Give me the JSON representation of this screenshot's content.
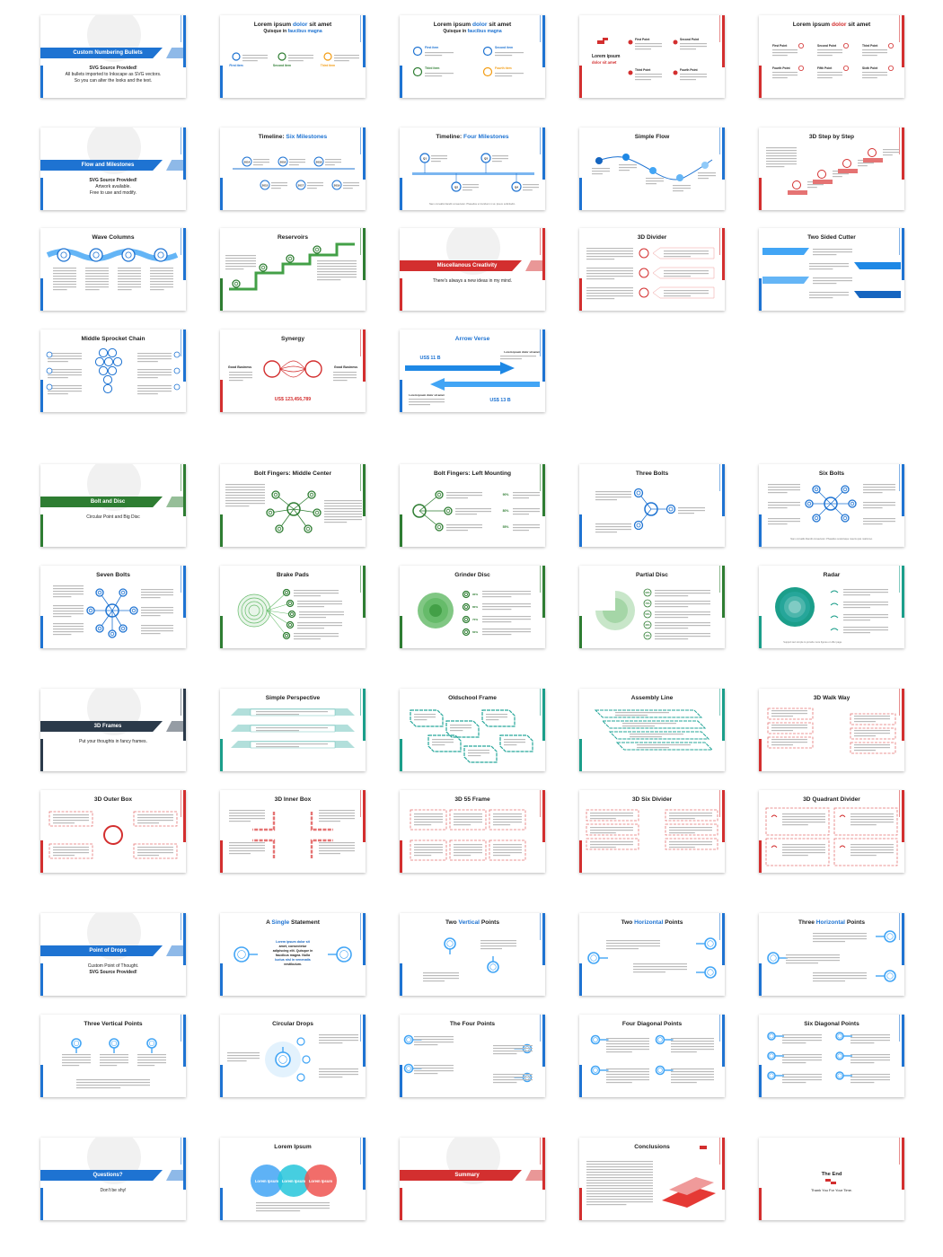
{
  "palette": {
    "blue": "#1e73d2",
    "blue2": "#2196f3",
    "red": "#d32f2f",
    "green": "#2e7d32",
    "teal": "#1b9e8a",
    "dark": "#2b3a4a"
  },
  "slides": [
    {
      "kind": "section",
      "accent": "blue",
      "label": "Custom Numbering Bullets",
      "lines": [
        "SVG Source Provided!",
        "All bullets imported to Inkscape as SVG vectors.",
        "So you can alter the looks and the text."
      ]
    },
    {
      "kind": "content",
      "accent": "blue",
      "title": [
        {
          "t": "Lorem ipsum "
        },
        {
          "t": "dolor",
          "c": "blue"
        },
        {
          "t": " sit amet"
        }
      ],
      "subtitle": [
        {
          "t": "Quisque in "
        },
        {
          "t": "faucibus magna",
          "c": "blue"
        }
      ],
      "viz": "bullets3",
      "labels": [
        "First item",
        "Second item",
        "Third item"
      ]
    },
    {
      "kind": "content",
      "accent": "blue",
      "title": [
        {
          "t": "Lorem ipsum "
        },
        {
          "t": "dolor",
          "c": "blue"
        },
        {
          "t": " sit amet"
        }
      ],
      "subtitle": [
        {
          "t": "Quisque in "
        },
        {
          "t": "faucibus magna",
          "c": "blue"
        }
      ],
      "viz": "bullets4",
      "labels": [
        "First item",
        "Second item",
        "Third item",
        "Fourth item"
      ]
    },
    {
      "kind": "content",
      "accent": "red",
      "title": [],
      "viz": "redleft",
      "left": [
        "Lorem ipsum",
        "dolor sit amet"
      ],
      "labels": [
        "First Point",
        "Second Point",
        "Third Point",
        "Fourth Point"
      ]
    },
    {
      "kind": "content",
      "accent": "red",
      "title": [
        {
          "t": "Lorem ipsum "
        },
        {
          "t": "dolor",
          "c": "red"
        },
        {
          "t": " sit amet"
        }
      ],
      "viz": "grid6",
      "labels": [
        "First Point",
        "Second Point",
        "Third Point",
        "Fourth Point",
        "Fifth Point",
        "Sixth Point"
      ]
    },
    {
      "kind": "section",
      "accent": "blue",
      "label": "Flow and Milestones",
      "lines": [
        "SVG Source Provided!",
        "Artwork available.",
        "Free to use and modify."
      ]
    },
    {
      "kind": "content",
      "accent": "blue",
      "title": [
        {
          "t": "Timeline: "
        },
        {
          "t": "Six Milestones",
          "c": "blue"
        }
      ],
      "viz": "timeline6",
      "labels": [
        "2014",
        "2015",
        "2016",
        "2017",
        "2018",
        "2019"
      ]
    },
    {
      "kind": "content",
      "accent": "blue",
      "title": [
        {
          "t": "Timeline: "
        },
        {
          "t": "Four Milestones",
          "c": "blue"
        }
      ],
      "viz": "timeline4",
      "labels": [
        "Q1",
        "Q2",
        "Q3",
        "Q4"
      ],
      "caption": "Nam convallis blandit consectetur. Phasellus ut tincidunt mi at. Ipsum sollicitudin."
    },
    {
      "kind": "content",
      "accent": "blue",
      "title": [
        {
          "t": "Simple Flow"
        }
      ],
      "viz": "flow"
    },
    {
      "kind": "content",
      "accent": "red",
      "title": [
        {
          "t": "3D Step by Step"
        }
      ],
      "viz": "steps"
    },
    {
      "kind": "content",
      "accent": "blue",
      "title": [
        {
          "t": "Wave Columns"
        }
      ],
      "viz": "wave"
    },
    {
      "kind": "content",
      "accent": "green",
      "title": [
        {
          "t": "Reservoirs"
        }
      ],
      "viz": "reservoirs"
    },
    {
      "kind": "section",
      "accent": "red",
      "label": "Miscellanous Creativity",
      "lines": [
        "There's always a new ideas in my mind."
      ]
    },
    {
      "kind": "content",
      "accent": "red",
      "title": [
        {
          "t": "3D Divider"
        }
      ],
      "viz": "divider"
    },
    {
      "kind": "content",
      "accent": "blue",
      "title": [
        {
          "t": "Two Sided Cutter"
        }
      ],
      "viz": "cutter"
    },
    {
      "kind": "content",
      "accent": "blue",
      "title": [
        {
          "t": "Middle Sprocket Chain"
        }
      ],
      "viz": "sprocket"
    },
    {
      "kind": "content",
      "accent": "red",
      "title": [
        {
          "t": "Synergy"
        }
      ],
      "viz": "synergy",
      "labels": [
        "Good Business",
        "Good Business",
        "US$ 123,456,789"
      ]
    },
    {
      "kind": "content",
      "accent": "blue",
      "title": [
        {
          "t": "Arrow Verse",
          "c": "blue"
        }
      ],
      "viz": "arrows",
      "labels": [
        "US$ 11 B",
        "US$ 13 B",
        "Lorem ipsum dolor sit amet",
        "Lorem ipsum dolor sit amet"
      ]
    },
    {
      "kind": "section",
      "accent": "green",
      "label": "Bolt and Disc",
      "lines": [
        "Circular Point and Big Disc"
      ]
    },
    {
      "kind": "content",
      "accent": "green",
      "title": [
        {
          "t": "Bolt Fingers: Middle Center"
        }
      ],
      "viz": "boltmid"
    },
    {
      "kind": "content",
      "accent": "green",
      "title": [
        {
          "t": "Bolt Fingers: Left Mounting"
        }
      ],
      "viz": "boltleft",
      "labels": [
        "90%",
        "80%",
        "55%"
      ]
    },
    {
      "kind": "content",
      "accent": "blue",
      "title": [
        {
          "t": "Three Bolts"
        }
      ],
      "viz": "bolts3"
    },
    {
      "kind": "content",
      "accent": "blue",
      "title": [
        {
          "t": "Six Bolts"
        }
      ],
      "viz": "bolts6",
      "caption": "Nam convallis blandit consectetur. Phasellus scelerisque mauris quis mattis leo."
    },
    {
      "kind": "content",
      "accent": "blue",
      "title": [
        {
          "t": "Seven Bolts"
        }
      ],
      "viz": "bolts7"
    },
    {
      "kind": "content",
      "accent": "green",
      "title": [
        {
          "t": "Brake Pads"
        }
      ],
      "viz": "brake"
    },
    {
      "kind": "content",
      "accent": "green",
      "title": [
        {
          "t": "Grinder Disc"
        }
      ],
      "viz": "grinder",
      "labels": [
        "90%",
        "80%",
        "70%",
        "60%"
      ]
    },
    {
      "kind": "content",
      "accent": "green",
      "title": [
        {
          "t": "Partial Disc"
        }
      ],
      "viz": "partial",
      "labels": [
        "90%",
        "70%",
        "50%",
        "30%",
        "10%"
      ]
    },
    {
      "kind": "content",
      "accent": "teal",
      "title": [
        {
          "t": "Radar"
        }
      ],
      "viz": "radar",
      "caption": "Support text simple to provide more figures or offer page."
    },
    {
      "kind": "section",
      "accent": "dark",
      "label": "3D Frames",
      "lines": [
        "Put your thoughts in fancy frames."
      ]
    },
    {
      "kind": "content",
      "accent": "teal",
      "title": [
        {
          "t": "Simple Perspective"
        }
      ],
      "viz": "perspective"
    },
    {
      "kind": "content",
      "accent": "teal",
      "title": [
        {
          "t": "Oldschool Frame"
        }
      ],
      "viz": "oldschool"
    },
    {
      "kind": "content",
      "accent": "teal",
      "title": [
        {
          "t": "Assembly Line"
        }
      ],
      "viz": "assembly"
    },
    {
      "kind": "content",
      "accent": "red",
      "title": [
        {
          "t": "3D Walk Way"
        }
      ],
      "viz": "walkway"
    },
    {
      "kind": "content",
      "accent": "red",
      "title": [
        {
          "t": "3D Outer Box"
        }
      ],
      "viz": "outerbox"
    },
    {
      "kind": "content",
      "accent": "red",
      "title": [
        {
          "t": "3D Inner Box"
        }
      ],
      "viz": "innerbox"
    },
    {
      "kind": "content",
      "accent": "red",
      "title": [
        {
          "t": "3D 55 Frame"
        }
      ],
      "viz": "frame55"
    },
    {
      "kind": "content",
      "accent": "red",
      "title": [
        {
          "t": "3D Six Divider"
        }
      ],
      "viz": "sixdiv"
    },
    {
      "kind": "content",
      "accent": "red",
      "title": [
        {
          "t": "3D Quadrant Divider"
        }
      ],
      "viz": "quadrant"
    },
    {
      "kind": "section",
      "accent": "blue",
      "label": "Point of Drops",
      "lines": [
        "Custom Point of Thought.",
        "SVG Source Provided!"
      ]
    },
    {
      "kind": "content",
      "accent": "blue",
      "title": [
        {
          "t": "A "
        },
        {
          "t": "Single",
          "c": "blue"
        },
        {
          "t": " Statement"
        }
      ],
      "viz": "single",
      "text": [
        "Lorem ipsum dolor sit",
        "amet, consectetur",
        "adipiscing elit. Quisque in",
        "faucibus magna. Nulla",
        "luctus nisl in venenatis",
        "vestibulum."
      ]
    },
    {
      "kind": "content",
      "accent": "blue",
      "title": [
        {
          "t": "Two "
        },
        {
          "t": "Vertical",
          "c": "blue"
        },
        {
          "t": " Points"
        }
      ],
      "viz": "twovert"
    },
    {
      "kind": "content",
      "accent": "blue",
      "title": [
        {
          "t": "Two "
        },
        {
          "t": "Horizontal",
          "c": "blue"
        },
        {
          "t": " Points"
        }
      ],
      "viz": "twohoriz"
    },
    {
      "kind": "content",
      "accent": "blue",
      "title": [
        {
          "t": "Three "
        },
        {
          "t": "Horizontal",
          "c": "blue"
        },
        {
          "t": " Points"
        }
      ],
      "viz": "threehoriz"
    },
    {
      "kind": "content",
      "accent": "blue",
      "title": [
        {
          "t": "Three Vertical Points"
        }
      ],
      "viz": "threevert"
    },
    {
      "kind": "content",
      "accent": "blue",
      "title": [
        {
          "t": "Circular Drops"
        }
      ],
      "viz": "circdrops"
    },
    {
      "kind": "content",
      "accent": "blue",
      "title": [
        {
          "t": "The Four Points"
        }
      ],
      "viz": "fourpoints"
    },
    {
      "kind": "content",
      "accent": "blue",
      "title": [
        {
          "t": "Four Diagonal Points"
        }
      ],
      "viz": "fourdiag"
    },
    {
      "kind": "content",
      "accent": "blue",
      "title": [
        {
          "t": "Six Diagonal Points"
        }
      ],
      "viz": "sixdiag"
    },
    {
      "kind": "section",
      "accent": "blue",
      "label": "Questions?",
      "lines": [
        "Don't be shy!"
      ]
    },
    {
      "kind": "content",
      "accent": "blue",
      "title": [
        {
          "t": "Lorem Ipsum"
        }
      ],
      "viz": "venn",
      "labels": [
        "Lorem Ipsum",
        "Lorem Ipsum",
        "Lorem Ipsum",
        "Lorem Ipsum"
      ]
    },
    {
      "kind": "section",
      "accent": "red",
      "label": "Summary",
      "lines": []
    },
    {
      "kind": "content",
      "accent": "red",
      "title": [
        {
          "t": "Conclusions"
        }
      ],
      "viz": "conclusions"
    },
    {
      "kind": "content",
      "accent": "red",
      "title": [],
      "viz": "theend",
      "labels": [
        "The End",
        "Thank You For Your Time."
      ]
    }
  ]
}
